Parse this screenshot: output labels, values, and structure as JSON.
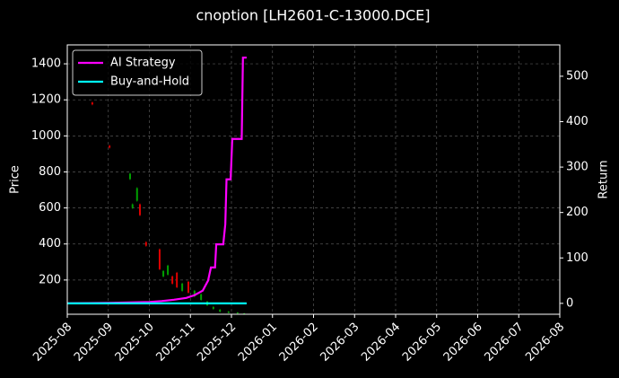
{
  "chart_data": {
    "type": "candlestick",
    "title": "cnoption [LH2601-C-13000.DCE]",
    "ylabel": "Price",
    "y2label": "Return",
    "xlim": [
      0,
      12
    ],
    "xticks": [
      {
        "value": 0,
        "label": "2025-08"
      },
      {
        "value": 1,
        "label": "2025-09"
      },
      {
        "value": 2,
        "label": "2025-10"
      },
      {
        "value": 3,
        "label": "2025-11"
      },
      {
        "value": 4,
        "label": "2025-12"
      },
      {
        "value": 5,
        "label": "2026-01"
      },
      {
        "value": 6,
        "label": "2026-02"
      },
      {
        "value": 7,
        "label": "2026-03"
      },
      {
        "value": 8,
        "label": "2026-04"
      },
      {
        "value": 9,
        "label": "2026-05"
      },
      {
        "value": 10,
        "label": "2026-06"
      },
      {
        "value": 11,
        "label": "2026-07"
      },
      {
        "value": 12,
        "label": "2026-08"
      }
    ],
    "ylim": [
      10,
      1505
    ],
    "yticks": [
      200,
      400,
      600,
      800,
      1000,
      1200,
      1400
    ],
    "y2lim": [
      -24,
      569
    ],
    "y2ticks": [
      0,
      100,
      200,
      300,
      400,
      500
    ],
    "grid": true,
    "legend": "upper-left",
    "up_color": "#00a000",
    "down_color": "#e00000",
    "candles": {
      "x": [
        0.61,
        1.03,
        1.53,
        1.59,
        1.7,
        1.77,
        1.92,
        2.25,
        2.34,
        2.45,
        2.56,
        2.67,
        2.8,
        2.95,
        3.1,
        3.26,
        3.41,
        3.56,
        3.72,
        3.93,
        4.15,
        4.31
      ],
      "open": [
        1185,
        945,
        760,
        600,
        640,
        620,
        410,
        370,
        220,
        230,
        220,
        240,
        140,
        190,
        110,
        90,
        60,
        40,
        25,
        18,
        15,
        12
      ],
      "close": [
        1175,
        935,
        790,
        620,
        710,
        560,
        390,
        260,
        250,
        280,
        180,
        160,
        180,
        130,
        140,
        120,
        80,
        50,
        35,
        25,
        20,
        15
      ],
      "high": [
        1190,
        950,
        795,
        625,
        715,
        625,
        415,
        375,
        255,
        285,
        225,
        245,
        185,
        195,
        145,
        125,
        85,
        55,
        40,
        28,
        22,
        17
      ],
      "low": [
        1170,
        930,
        755,
        595,
        635,
        555,
        385,
        255,
        215,
        225,
        175,
        155,
        135,
        125,
        105,
        85,
        55,
        35,
        20,
        15,
        12,
        10
      ]
    },
    "series": [
      {
        "name": "AI Strategy",
        "color": "#ff00ff",
        "axis": "y2",
        "x": [
          0,
          1.0,
          1.5,
          2.0,
          2.3,
          2.6,
          2.9,
          3.1,
          3.3,
          3.43,
          3.5,
          3.6,
          3.63,
          3.8,
          3.85,
          3.88,
          3.98,
          4.02,
          4.25,
          4.28,
          4.37
        ],
        "values": [
          0,
          1,
          2,
          3,
          5,
          8,
          12,
          18,
          28,
          50,
          79,
          79,
          130,
          130,
          174,
          273,
          273,
          362,
          362,
          541,
          541
        ]
      },
      {
        "name": "Buy-and-Hold",
        "color": "#00ffff",
        "axis": "y2",
        "x": [
          0,
          4.37
        ],
        "values": [
          0,
          0
        ]
      }
    ]
  }
}
